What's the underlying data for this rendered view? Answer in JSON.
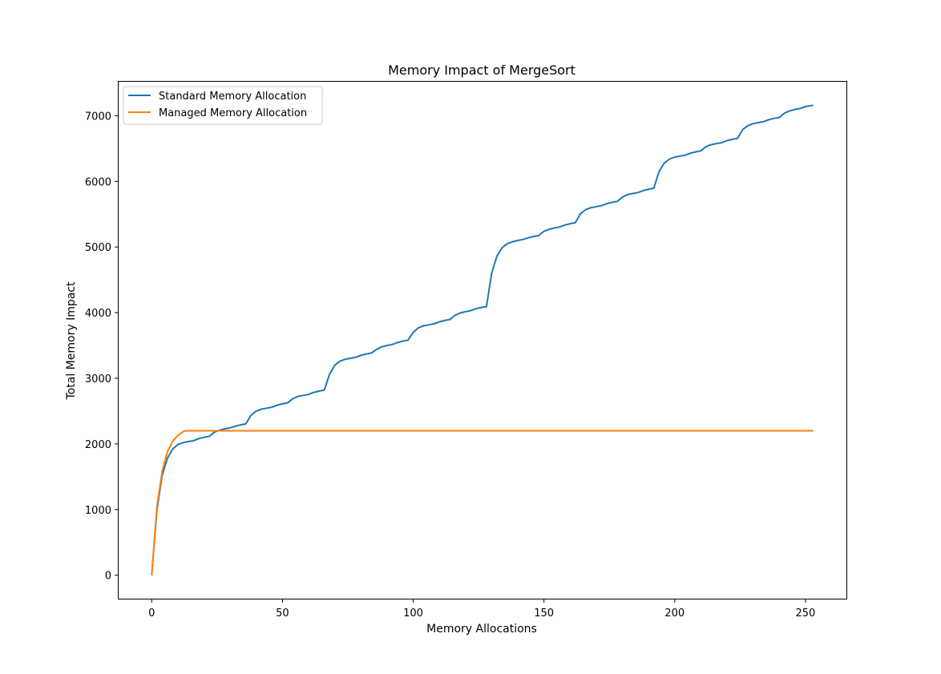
{
  "chart_data": {
    "type": "line",
    "title": "Memory Impact of MergeSort",
    "xlabel": "Memory Allocations",
    "ylabel": "Total Memory Impact",
    "xlim": [
      -12.65,
      265.65
    ],
    "ylim": [
      -358,
      7518
    ],
    "xticks": [
      0,
      50,
      100,
      150,
      200,
      250
    ],
    "yticks": [
      0,
      1000,
      2000,
      3000,
      4000,
      5000,
      6000,
      7000
    ],
    "grid": false,
    "legend": "top-left",
    "series": [
      {
        "name": "Standard Memory Allocation",
        "color": "#1f77b4",
        "x": [
          0,
          2,
          4,
          6,
          8,
          10,
          12,
          14,
          16,
          18,
          20,
          22,
          24,
          26,
          28,
          30,
          32,
          34,
          36,
          38,
          40,
          42,
          44,
          46,
          48,
          50,
          52,
          54,
          56,
          58,
          60,
          62,
          64,
          66,
          68,
          70,
          72,
          74,
          76,
          78,
          80,
          82,
          84,
          86,
          88,
          90,
          92,
          94,
          96,
          98,
          100,
          102,
          104,
          106,
          108,
          110,
          112,
          114,
          116,
          118,
          120,
          122,
          124,
          126,
          128,
          130,
          132,
          134,
          136,
          138,
          140,
          142,
          144,
          146,
          148,
          150,
          152,
          154,
          156,
          158,
          160,
          162,
          164,
          166,
          168,
          170,
          172,
          174,
          176,
          178,
          180,
          182,
          184,
          186,
          188,
          190,
          192,
          194,
          196,
          198,
          200,
          202,
          204,
          206,
          208,
          210,
          212,
          214,
          216,
          218,
          220,
          222,
          224,
          226,
          228,
          230,
          232,
          234,
          236,
          238,
          240,
          242,
          244,
          246,
          248,
          250,
          253
        ],
        "values": [
          0,
          1000,
          1520,
          1780,
          1920,
          1990,
          2020,
          2035,
          2050,
          2080,
          2100,
          2115,
          2180,
          2210,
          2230,
          2245,
          2270,
          2290,
          2305,
          2440,
          2500,
          2530,
          2545,
          2560,
          2590,
          2610,
          2625,
          2690,
          2725,
          2740,
          2755,
          2785,
          2805,
          2820,
          3060,
          3200,
          3260,
          3290,
          3305,
          3320,
          3350,
          3370,
          3385,
          3440,
          3480,
          3500,
          3515,
          3545,
          3565,
          3580,
          3700,
          3770,
          3800,
          3815,
          3830,
          3860,
          3880,
          3895,
          3960,
          3995,
          4015,
          4030,
          4060,
          4080,
          4090,
          4600,
          4860,
          4990,
          5050,
          5080,
          5100,
          5115,
          5140,
          5160,
          5175,
          5240,
          5270,
          5290,
          5305,
          5335,
          5355,
          5370,
          5510,
          5570,
          5600,
          5615,
          5630,
          5660,
          5680,
          5695,
          5760,
          5800,
          5815,
          5830,
          5860,
          5880,
          5895,
          6150,
          6280,
          6340,
          6370,
          6385,
          6400,
          6430,
          6450,
          6465,
          6530,
          6560,
          6575,
          6590,
          6620,
          6640,
          6655,
          6790,
          6850,
          6880,
          6895,
          6910,
          6940,
          6960,
          6975,
          7040,
          7075,
          7095,
          7110,
          7140,
          7160
        ]
      },
      {
        "name": "Managed Memory Allocation",
        "color": "#ff7f0e",
        "x": [
          0,
          2,
          4,
          6,
          8,
          10,
          12,
          13,
          253
        ],
        "values": [
          0,
          1050,
          1580,
          1880,
          2040,
          2130,
          2185,
          2200,
          2200
        ]
      }
    ]
  }
}
